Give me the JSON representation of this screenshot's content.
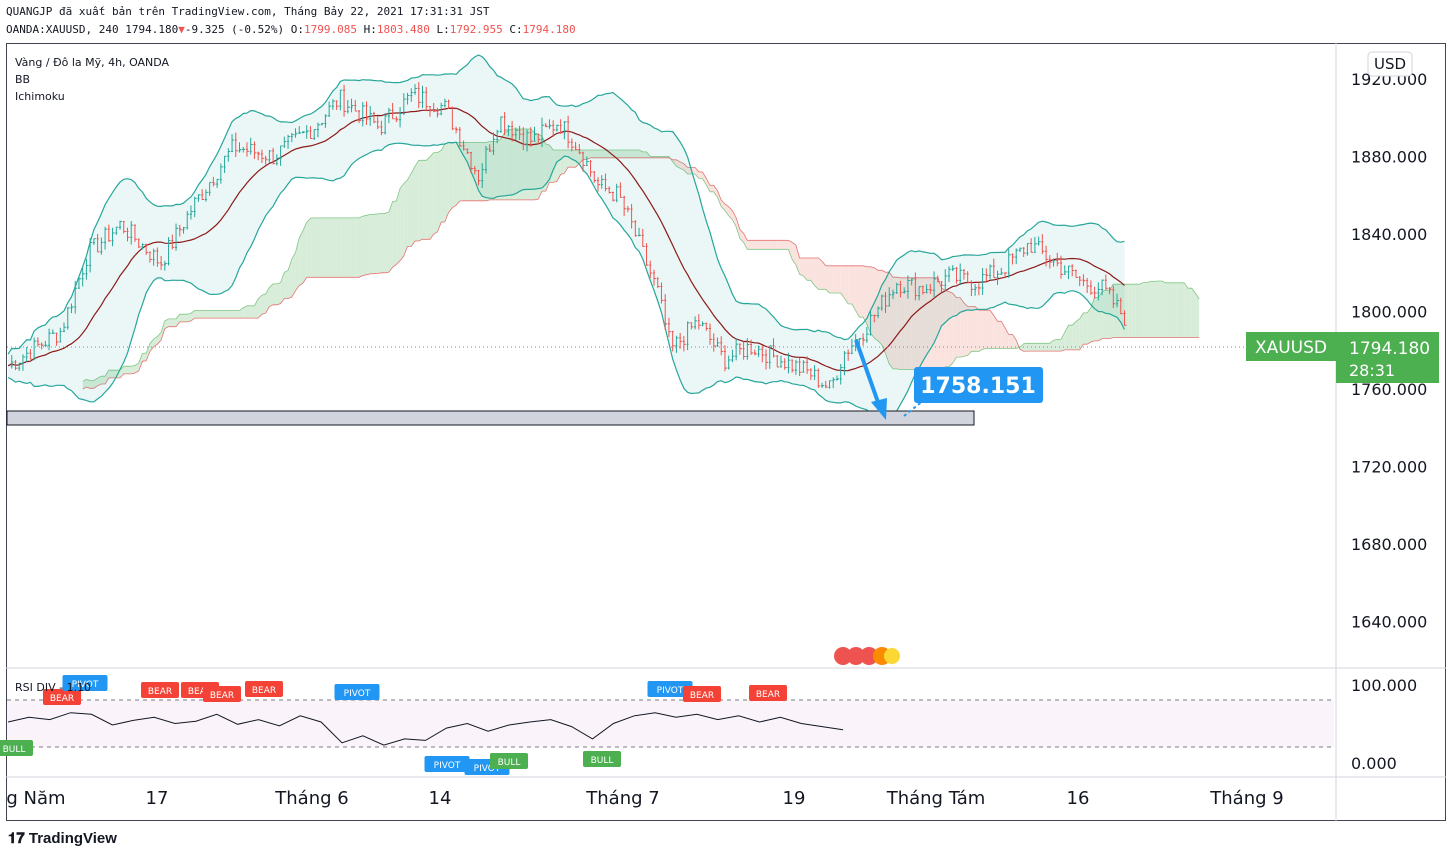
{
  "header": {
    "published": "QUANGJP đã xuất bản trên TradingView.com, Tháng Bảy 22, 2021 17:31:31 JST",
    "symbol": "OANDA:XAUUSD, 240",
    "last": "1794.180",
    "change": "-9.325 (-0.52%)",
    "o_label": "O:",
    "o": "1799.085",
    "h_label": "H:",
    "h": "1803.480",
    "l_label": "L:",
    "l": "1792.955",
    "c_label": "C:",
    "c": "1794.180"
  },
  "legend": {
    "title": "Vàng / Đô la Mỹ, 4h, OANDA",
    "ind1": "BB",
    "ind2": "Ichimoku",
    "rsi": "RSI DIV - 1.10"
  },
  "currency": "USD",
  "price_tag": {
    "symbol": "XAUUSD",
    "price": "1794.180",
    "countdown": "28:31"
  },
  "annotation": {
    "target": "1758.151"
  },
  "colors": {
    "up": "#26a69a",
    "down": "#ef5350",
    "bb": "#26a69a",
    "basis": "#8b1a1a",
    "cloud_bull": "#c8e6c9",
    "cloud_bear": "#f8d7d1",
    "accent": "#2196f3",
    "tag": "#4caf50"
  },
  "footer": {
    "brand": "TradingView"
  },
  "chart_data": {
    "type": "candlestick",
    "timeframe": "4h",
    "ylim": [
      1620,
      1935
    ],
    "y_ticks": [
      "1920.000",
      "1880.000",
      "1840.000",
      "1800.000",
      "1760.000",
      "1720.000",
      "1680.000",
      "1640.000"
    ],
    "x_ticks": [
      "g Năm",
      "17",
      "Tháng 6",
      "14",
      "Tháng 7",
      "19",
      "Tháng Tám",
      "16",
      "Tháng 9"
    ],
    "price_path": [
      {
        "x": 0,
        "y": 1772
      },
      {
        "x": 0.04,
        "y": 1790
      },
      {
        "x": 0.06,
        "y": 1830
      },
      {
        "x": 0.085,
        "y": 1845
      },
      {
        "x": 0.115,
        "y": 1825
      },
      {
        "x": 0.14,
        "y": 1855
      },
      {
        "x": 0.17,
        "y": 1885
      },
      {
        "x": 0.2,
        "y": 1880
      },
      {
        "x": 0.23,
        "y": 1895
      },
      {
        "x": 0.25,
        "y": 1910
      },
      {
        "x": 0.28,
        "y": 1895
      },
      {
        "x": 0.305,
        "y": 1912
      },
      {
        "x": 0.33,
        "y": 1905
      },
      {
        "x": 0.355,
        "y": 1870
      },
      {
        "x": 0.37,
        "y": 1900
      },
      {
        "x": 0.395,
        "y": 1888
      },
      {
        "x": 0.415,
        "y": 1898
      },
      {
        "x": 0.43,
        "y": 1885
      },
      {
        "x": 0.445,
        "y": 1865
      },
      {
        "x": 0.46,
        "y": 1860
      },
      {
        "x": 0.47,
        "y": 1845
      },
      {
        "x": 0.49,
        "y": 1810
      },
      {
        "x": 0.5,
        "y": 1780
      },
      {
        "x": 0.52,
        "y": 1795
      },
      {
        "x": 0.54,
        "y": 1775
      },
      {
        "x": 0.56,
        "y": 1782
      },
      {
        "x": 0.58,
        "y": 1776
      },
      {
        "x": 0.605,
        "y": 1768
      },
      {
        "x": 0.62,
        "y": 1760
      },
      {
        "x": 0.63,
        "y": 1778
      },
      {
        "x": 0.645,
        "y": 1790
      },
      {
        "x": 0.67,
        "y": 1815
      },
      {
        "x": 0.69,
        "y": 1812
      },
      {
        "x": 0.71,
        "y": 1818
      },
      {
        "x": 0.73,
        "y": 1815
      },
      {
        "x": 0.75,
        "y": 1822
      },
      {
        "x": 0.77,
        "y": 1835
      },
      {
        "x": 0.79,
        "y": 1825
      },
      {
        "x": 0.81,
        "y": 1815
      },
      {
        "x": 0.825,
        "y": 1812
      },
      {
        "x": 0.842,
        "y": 1797
      }
    ],
    "rsi": {
      "upper": 70,
      "lower": 30,
      "ylim": [
        0,
        100
      ],
      "values": [
        52,
        58,
        55,
        64,
        62,
        48,
        54,
        58,
        50,
        53,
        62,
        49,
        55,
        47,
        60,
        52,
        25,
        34,
        22,
        30,
        28,
        44,
        50,
        40,
        48,
        52,
        55,
        46,
        30,
        50,
        60,
        64,
        58,
        62,
        55,
        60,
        52,
        58,
        50,
        46,
        42
      ]
    },
    "signals": [
      {
        "label": "BEAR",
        "type": "bear"
      },
      {
        "label": "PIVOT",
        "type": "pivot"
      },
      {
        "label": "BULL",
        "type": "bull"
      },
      {
        "label": "BEAR",
        "type": "bear"
      },
      {
        "label": "BEAR",
        "type": "bear"
      },
      {
        "label": "BEAR",
        "type": "bear"
      },
      {
        "label": "BEAR",
        "type": "bear"
      },
      {
        "label": "PIVOT",
        "type": "pivot"
      },
      {
        "label": "PIVOT",
        "type": "pivot"
      },
      {
        "label": "PIVOT",
        "type": "pivot"
      },
      {
        "label": "BULL",
        "type": "bull"
      },
      {
        "label": "BULL",
        "type": "bull"
      },
      {
        "label": "PIVOT",
        "type": "pivot"
      },
      {
        "label": "BEAR",
        "type": "bear"
      },
      {
        "label": "BEAR",
        "type": "bear"
      }
    ]
  }
}
